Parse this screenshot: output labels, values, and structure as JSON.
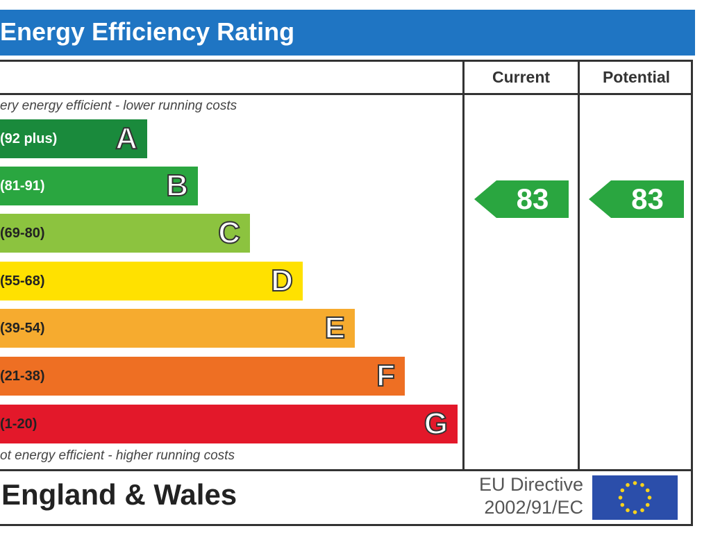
{
  "title": "Energy Efficiency Rating",
  "columns": {
    "current": "Current",
    "potential": "Potential"
  },
  "captions": {
    "top": "ery energy efficient - lower running costs",
    "bottom": "ot energy efficient - higher running costs"
  },
  "bands": [
    {
      "range": "(92 plus)",
      "letter": "A",
      "color": "#1a8a3c",
      "text_color": "#ffffff"
    },
    {
      "range": "(81-91)",
      "letter": "B",
      "color": "#2aa640",
      "text_color": "#ffffff"
    },
    {
      "range": "(69-80)",
      "letter": "C",
      "color": "#8cc33f",
      "text_color": "#222222"
    },
    {
      "range": "(55-68)",
      "letter": "D",
      "color": "#ffe100",
      "text_color": "#222222"
    },
    {
      "range": "(39-54)",
      "letter": "E",
      "color": "#f6ab2f",
      "text_color": "#222222"
    },
    {
      "range": "(21-38)",
      "letter": "F",
      "color": "#ee6f23",
      "text_color": "#222222"
    },
    {
      "range": "(1-20)",
      "letter": "G",
      "color": "#e3182a",
      "text_color": "#222222"
    }
  ],
  "current": {
    "value": "83",
    "color": "#2aa640"
  },
  "potential": {
    "value": "83",
    "color": "#2aa640"
  },
  "footer": {
    "region": "England & Wales",
    "directive_line1": "EU Directive",
    "directive_line2": "2002/91/EC"
  },
  "colors": {
    "header": "#1f75c3",
    "flag": "#2b4eaa",
    "flag_stars": "#f7d21c"
  }
}
